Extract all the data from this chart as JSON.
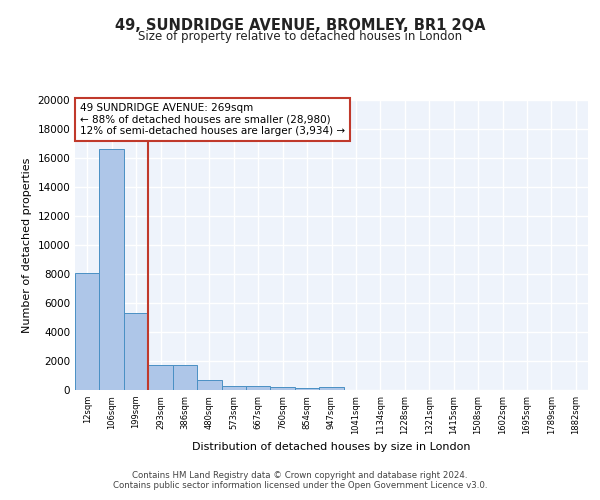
{
  "title": "49, SUNDRIDGE AVENUE, BROMLEY, BR1 2QA",
  "subtitle": "Size of property relative to detached houses in London",
  "xlabel": "Distribution of detached houses by size in London",
  "ylabel": "Number of detached properties",
  "bin_labels": [
    "12sqm",
    "106sqm",
    "199sqm",
    "293sqm",
    "386sqm",
    "480sqm",
    "573sqm",
    "667sqm",
    "760sqm",
    "854sqm",
    "947sqm",
    "1041sqm",
    "1134sqm",
    "1228sqm",
    "1321sqm",
    "1415sqm",
    "1508sqm",
    "1602sqm",
    "1695sqm",
    "1789sqm",
    "1882sqm"
  ],
  "bar_heights": [
    8100,
    16600,
    5300,
    1750,
    1750,
    700,
    300,
    250,
    200,
    150,
    200,
    0,
    0,
    0,
    0,
    0,
    0,
    0,
    0,
    0,
    0
  ],
  "bar_color": "#aec6e8",
  "bar_edge_color": "#4a90c4",
  "background_color": "#eef3fb",
  "grid_color": "#ffffff",
  "vline_color": "#c0392b",
  "annotation_text": "49 SUNDRIDGE AVENUE: 269sqm\n← 88% of detached houses are smaller (28,980)\n12% of semi-detached houses are larger (3,934) →",
  "annotation_box_color": "#ffffff",
  "annotation_box_edge": "#c0392b",
  "footer_text": "Contains HM Land Registry data © Crown copyright and database right 2024.\nContains public sector information licensed under the Open Government Licence v3.0.",
  "ylim": [
    0,
    20000
  ],
  "yticks": [
    0,
    2000,
    4000,
    6000,
    8000,
    10000,
    12000,
    14000,
    16000,
    18000,
    20000
  ]
}
